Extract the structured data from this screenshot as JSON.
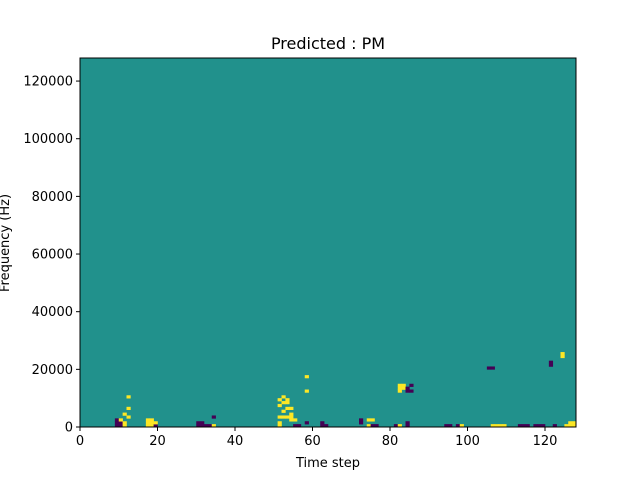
{
  "chart_data": {
    "type": "heatmap",
    "title": "Predicted : PM",
    "xlabel": "Time step",
    "ylabel": "Frequency (Hz)",
    "xlim": [
      0,
      128
    ],
    "ylim": [
      0,
      128000
    ],
    "x_ticks": [
      0,
      20,
      40,
      60,
      80,
      100,
      120
    ],
    "x_tick_labels": [
      "0",
      "20",
      "40",
      "60",
      "80",
      "100",
      "120"
    ],
    "y_ticks": [
      0,
      20000,
      40000,
      60000,
      80000,
      100000,
      120000
    ],
    "y_tick_labels": [
      "0",
      "20000",
      "40000",
      "60000",
      "80000",
      "100000",
      "120000"
    ],
    "grid": false,
    "legend": "none",
    "colormap": "viridis",
    "value_range": [
      -1,
      1
    ],
    "colors": {
      "low": "#440154",
      "mid": "#21918c",
      "high": "#fde725",
      "frame": "#000000"
    },
    "background_value": 0,
    "cells": [
      [
        9,
        0,
        -1
      ],
      [
        9,
        1,
        -1
      ],
      [
        9,
        2,
        -1
      ],
      [
        10,
        0,
        -1
      ],
      [
        10,
        1,
        -1
      ],
      [
        10,
        2,
        1
      ],
      [
        11,
        0,
        1
      ],
      [
        11,
        1,
        1
      ],
      [
        11,
        4,
        1
      ],
      [
        12,
        3,
        1
      ],
      [
        12,
        6,
        1
      ],
      [
        12,
        10,
        1
      ],
      [
        17,
        0,
        1
      ],
      [
        17,
        1,
        1
      ],
      [
        17,
        2,
        1
      ],
      [
        18,
        0,
        1
      ],
      [
        18,
        1,
        1
      ],
      [
        18,
        2,
        1
      ],
      [
        19,
        0,
        -1
      ],
      [
        19,
        1,
        1
      ],
      [
        30,
        0,
        -1
      ],
      [
        30,
        1,
        -1
      ],
      [
        31,
        0,
        -1
      ],
      [
        31,
        1,
        -1
      ],
      [
        32,
        0,
        -1
      ],
      [
        33,
        0,
        -1
      ],
      [
        34,
        0,
        1
      ],
      [
        34,
        3,
        -1
      ],
      [
        51,
        0,
        1
      ],
      [
        51,
        1,
        1
      ],
      [
        51,
        3,
        1
      ],
      [
        51,
        7,
        1
      ],
      [
        51,
        9,
        1
      ],
      [
        52,
        3,
        1
      ],
      [
        52,
        5,
        1
      ],
      [
        52,
        8,
        1
      ],
      [
        52,
        10,
        1
      ],
      [
        53,
        3,
        1
      ],
      [
        53,
        6,
        1
      ],
      [
        53,
        8,
        1
      ],
      [
        53,
        9,
        1
      ],
      [
        54,
        2,
        1
      ],
      [
        54,
        3,
        1
      ],
      [
        54,
        4,
        1
      ],
      [
        54,
        6,
        1
      ],
      [
        55,
        0,
        -1
      ],
      [
        55,
        2,
        1
      ],
      [
        56,
        0,
        -1
      ],
      [
        58,
        1,
        -1
      ],
      [
        58,
        12,
        1
      ],
      [
        58,
        17,
        1
      ],
      [
        62,
        0,
        -1
      ],
      [
        62,
        1,
        -1
      ],
      [
        63,
        0,
        -1
      ],
      [
        72,
        1,
        -1
      ],
      [
        72,
        2,
        -1
      ],
      [
        74,
        0,
        1
      ],
      [
        74,
        2,
        1
      ],
      [
        75,
        0,
        -1
      ],
      [
        75,
        2,
        1
      ],
      [
        76,
        0,
        -1
      ],
      [
        81,
        0,
        -1
      ],
      [
        82,
        0,
        1
      ],
      [
        82,
        12,
        1
      ],
      [
        82,
        13,
        1
      ],
      [
        82,
        14,
        1
      ],
      [
        83,
        13,
        1
      ],
      [
        83,
        14,
        1
      ],
      [
        84,
        0,
        -1
      ],
      [
        84,
        1,
        -1
      ],
      [
        84,
        12,
        -1
      ],
      [
        84,
        13,
        -1
      ],
      [
        85,
        12,
        -1
      ],
      [
        85,
        14,
        -1
      ],
      [
        94,
        0,
        -1
      ],
      [
        95,
        0,
        -1
      ],
      [
        97,
        0,
        -1
      ],
      [
        98,
        0,
        1
      ],
      [
        106,
        0,
        1
      ],
      [
        107,
        0,
        1
      ],
      [
        108,
        0,
        1
      ],
      [
        109,
        0,
        1
      ],
      [
        113,
        0,
        -1
      ],
      [
        114,
        0,
        -1
      ],
      [
        115,
        0,
        -1
      ],
      [
        117,
        0,
        -1
      ],
      [
        118,
        0,
        -1
      ],
      [
        119,
        0,
        -1
      ],
      [
        122,
        0,
        -1
      ],
      [
        125,
        0,
        1
      ],
      [
        126,
        0,
        1
      ],
      [
        127,
        0,
        1
      ],
      [
        126,
        1,
        1
      ],
      [
        127,
        1,
        1
      ],
      [
        105,
        20,
        -1
      ],
      [
        106,
        20,
        -1
      ],
      [
        121,
        22,
        -1
      ],
      [
        121,
        21,
        -1
      ],
      [
        124,
        24,
        1
      ],
      [
        124,
        25,
        1
      ]
    ]
  }
}
